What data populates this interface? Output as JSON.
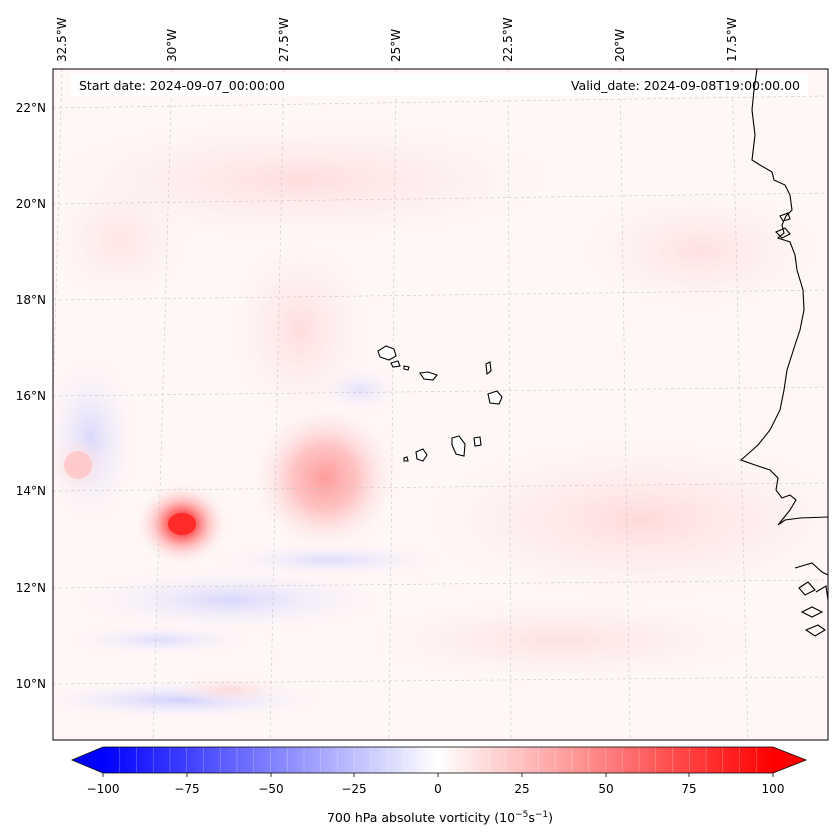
{
  "map": {
    "start_date": "Start date: 2024-09-07_00:00:00",
    "valid_date": "Valid_date: 2024-09-08T19:00:00.00",
    "lon_labels": [
      "32.5°W",
      "30°W",
      "27.5°W",
      "25°W",
      "22.5°W",
      "20°W",
      "17.5°W"
    ],
    "lat_labels": [
      "22°N",
      "20°N",
      "18°N",
      "16°N",
      "14°N",
      "12°N",
      "10°N"
    ],
    "features": [
      {
        "name": "cape-verde-islands"
      },
      {
        "name": "west-africa-coastline"
      }
    ],
    "anomalies": [
      {
        "name": "vortex-west",
        "lon": -29.7,
        "lat": 13.3,
        "value": 75
      },
      {
        "name": "vortex-central",
        "lon": -26.2,
        "lat": 14.5,
        "value": 25
      },
      {
        "name": "vortex-far-west",
        "lon": -32.0,
        "lat": 14.7,
        "value": 20
      },
      {
        "name": "band-south",
        "lon": -29.0,
        "lat": 9.8,
        "value": -30
      }
    ]
  },
  "colorbar": {
    "label": "700 hPa absolute vorticity (10",
    "label_exp1": "−5",
    "label_mid": "s",
    "label_exp2": "−1",
    "label_end": ")",
    "min": -100,
    "max": 100,
    "ticks": [
      "−100",
      "−75",
      "−50",
      "−25",
      "0",
      "25",
      "50",
      "75",
      "100"
    ],
    "colors": {
      "neg": "#0000ff",
      "zero": "#ffffff",
      "pos": "#ff0000"
    }
  }
}
